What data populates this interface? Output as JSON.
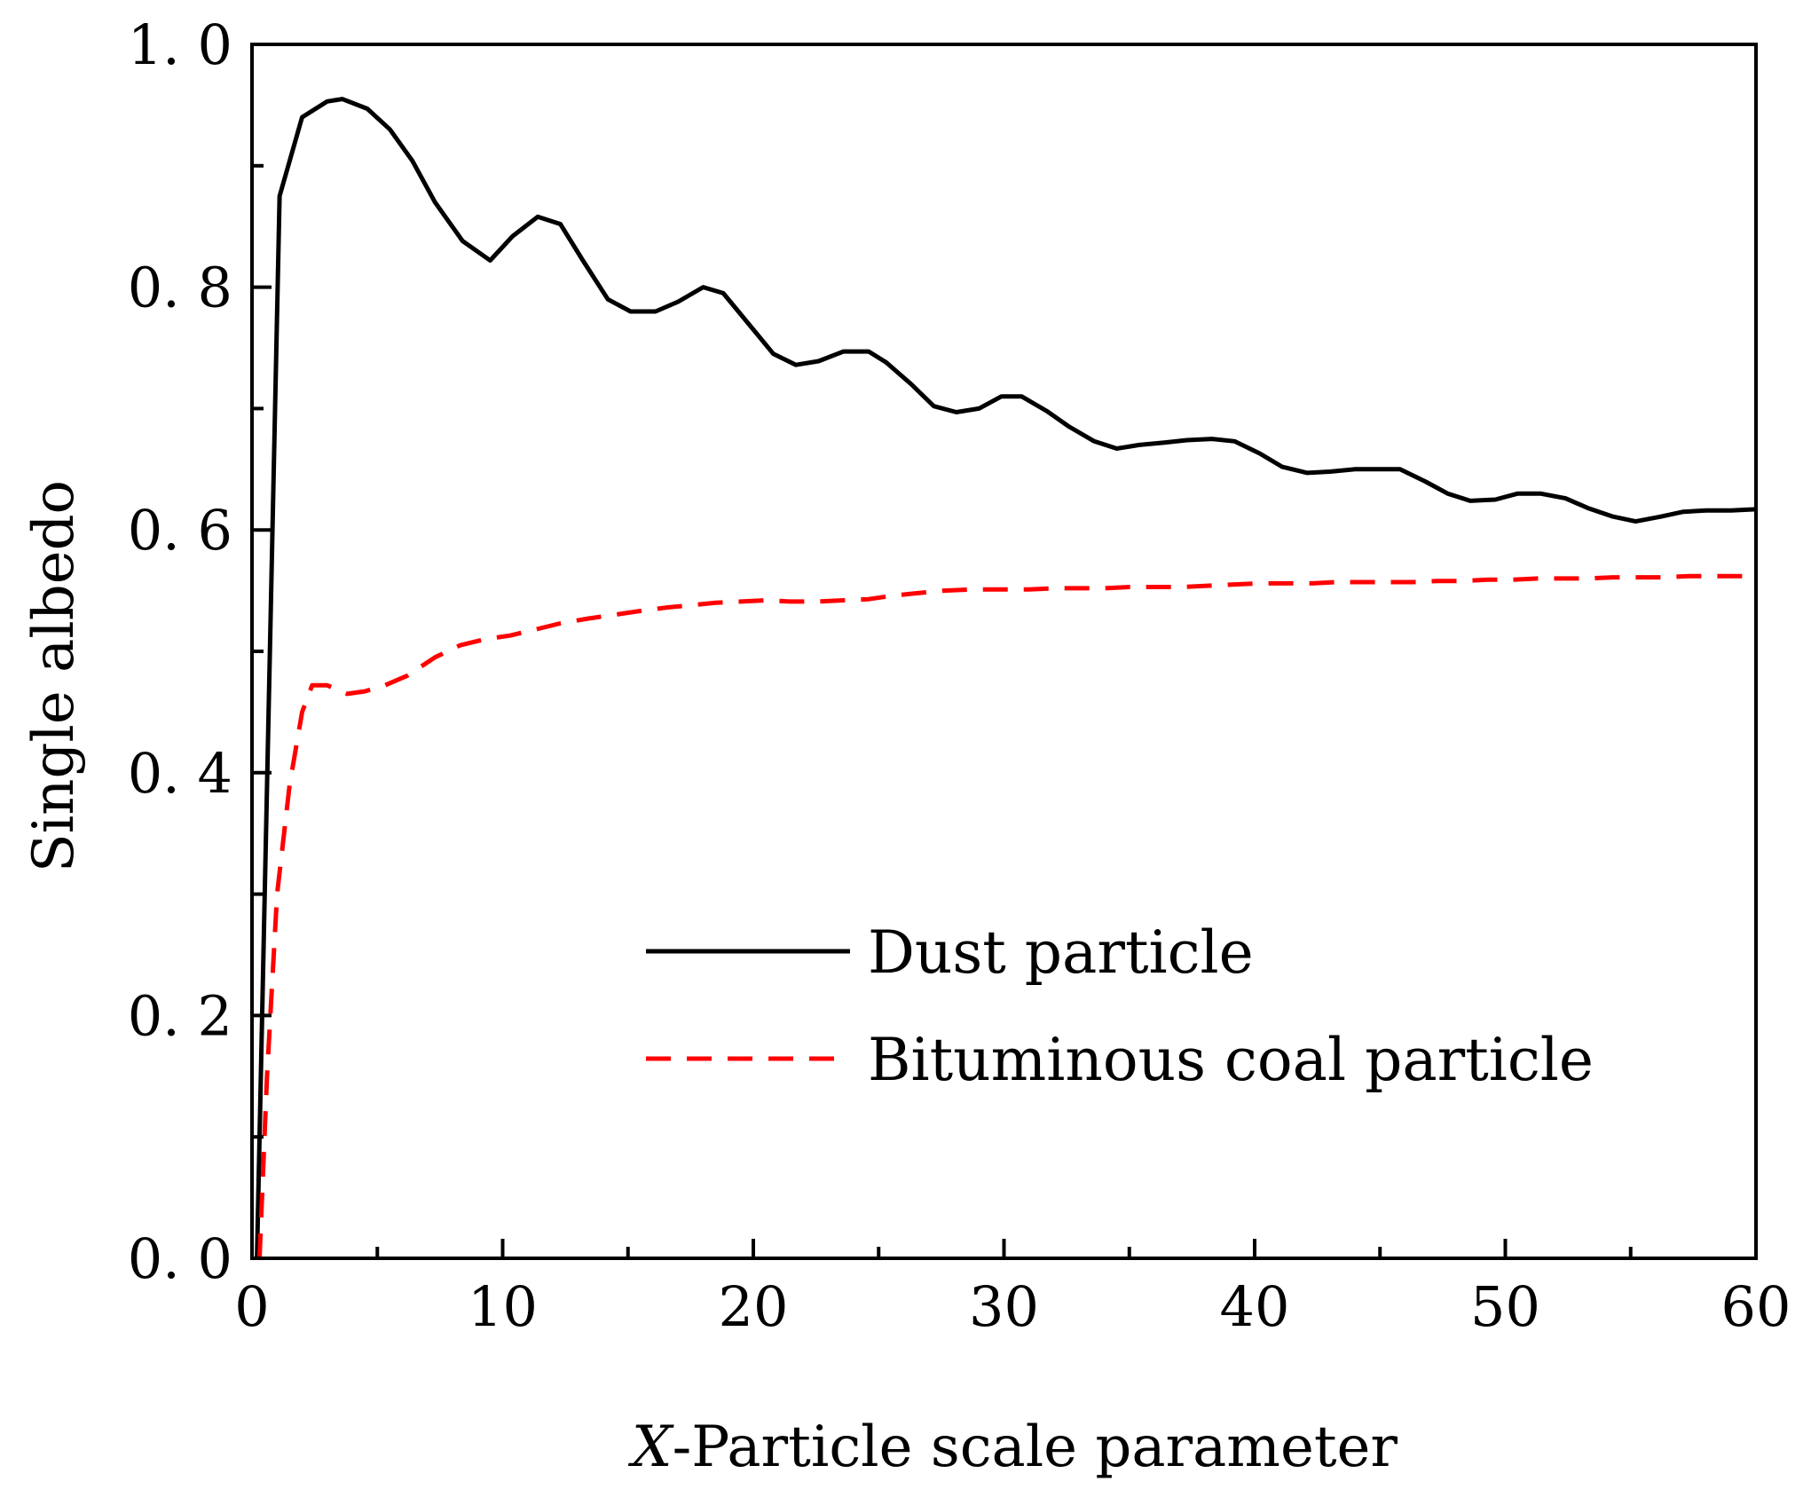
{
  "chart_data": {
    "type": "line",
    "title": "",
    "xlabel_prefix": "X",
    "xlabel": "-Particle scale parameter",
    "ylabel": "Single albedo",
    "xlim": [
      0,
      60
    ],
    "ylim": [
      0,
      1.0
    ],
    "xticks": [
      0,
      10,
      20,
      30,
      40,
      50,
      60
    ],
    "xtick_labels": [
      "0",
      "10",
      "20",
      "30",
      "40",
      "50",
      "60"
    ],
    "yticks": [
      0.0,
      0.2,
      0.4,
      0.6,
      0.8,
      1.0
    ],
    "ytick_labels": [
      "0. 0",
      "0. 2",
      "0. 4",
      "0. 6",
      "0. 8",
      "1. 0"
    ],
    "legend_position": "center-right",
    "series": [
      {
        "name": "Dust particle",
        "color": "#000000",
        "style": "solid",
        "x": [
          0.2,
          1.1,
          2.0,
          3.0,
          3.6,
          4.6,
          5.5,
          6.4,
          7.3,
          8.4,
          9.5,
          10.4,
          11.4,
          12.3,
          13.2,
          14.2,
          15.1,
          16.1,
          17.0,
          18.0,
          18.8,
          19.8,
          20.8,
          21.7,
          22.6,
          23.6,
          24.6,
          25.3,
          26.3,
          27.2,
          28.1,
          29.0,
          29.9,
          30.7,
          31.7,
          32.6,
          33.6,
          34.5,
          35.4,
          36.4,
          37.3,
          38.3,
          39.2,
          40.2,
          41.1,
          42.1,
          43.0,
          44.0,
          44.8,
          45.8,
          46.8,
          47.7,
          48.6,
          49.6,
          50.5,
          51.4,
          52.4,
          53.3,
          54.3,
          55.2,
          56.2,
          57.1,
          58.0,
          59.0,
          60.0
        ],
        "values": [
          0.0,
          0.875,
          0.94,
          0.953,
          0.955,
          0.947,
          0.93,
          0.904,
          0.87,
          0.838,
          0.822,
          0.842,
          0.858,
          0.852,
          0.822,
          0.79,
          0.78,
          0.78,
          0.788,
          0.8,
          0.795,
          0.77,
          0.745,
          0.736,
          0.739,
          0.747,
          0.747,
          0.738,
          0.72,
          0.702,
          0.697,
          0.7,
          0.71,
          0.71,
          0.698,
          0.685,
          0.673,
          0.667,
          0.67,
          0.672,
          0.674,
          0.675,
          0.673,
          0.663,
          0.652,
          0.647,
          0.648,
          0.65,
          0.65,
          0.65,
          0.64,
          0.63,
          0.624,
          0.625,
          0.63,
          0.63,
          0.626,
          0.618,
          0.611,
          0.607,
          0.611,
          0.615,
          0.616,
          0.616,
          0.617
        ]
      },
      {
        "name": "Bituminous coal particle",
        "color": "#ff0000",
        "style": "dashed",
        "x": [
          0.3,
          0.6,
          1.0,
          1.5,
          2.0,
          2.4,
          3.0,
          3.8,
          4.5,
          5.3,
          6.2,
          7.3,
          8.3,
          9.3,
          10.3,
          11.3,
          12.3,
          13.4,
          14.4,
          15.4,
          16.5,
          17.5,
          18.5,
          19.5,
          20.5,
          21.5,
          22.6,
          23.6,
          24.6,
          25.6,
          26.6,
          27.6,
          28.8,
          29.9,
          31.0,
          32.0,
          33.0,
          34.0,
          35.0,
          36.1,
          37.1,
          38.1,
          39.1,
          40.2,
          41.2,
          42.3,
          43.3,
          44.3,
          45.3,
          46.3,
          47.3,
          48.3,
          49.3,
          50.3,
          51.3,
          52.3,
          53.3,
          54.3,
          55.3,
          56.3,
          57.3,
          58.3,
          59.3,
          60.0
        ],
        "values": [
          0.0,
          0.15,
          0.3,
          0.39,
          0.45,
          0.472,
          0.472,
          0.465,
          0.467,
          0.472,
          0.48,
          0.495,
          0.505,
          0.51,
          0.513,
          0.518,
          0.523,
          0.527,
          0.53,
          0.533,
          0.536,
          0.538,
          0.54,
          0.541,
          0.542,
          0.541,
          0.541,
          0.542,
          0.543,
          0.546,
          0.548,
          0.55,
          0.551,
          0.551,
          0.551,
          0.552,
          0.552,
          0.552,
          0.553,
          0.553,
          0.553,
          0.554,
          0.555,
          0.556,
          0.556,
          0.556,
          0.557,
          0.557,
          0.557,
          0.557,
          0.558,
          0.558,
          0.559,
          0.559,
          0.56,
          0.56,
          0.56,
          0.561,
          0.561,
          0.561,
          0.562,
          0.562,
          0.562,
          0.562
        ]
      }
    ]
  }
}
